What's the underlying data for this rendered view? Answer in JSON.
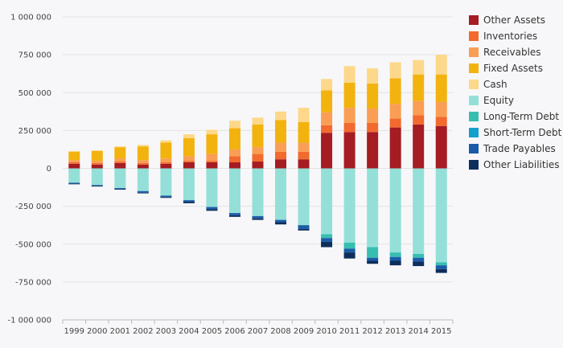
{
  "chart_data": {
    "type": "bar",
    "stacked": true,
    "categories": [
      "1999",
      "2000",
      "2001",
      "2002",
      "2003",
      "2004",
      "2005",
      "2006",
      "2007",
      "2008",
      "2009",
      "2010",
      "2011",
      "2012",
      "2013",
      "2014",
      "2015"
    ],
    "ylim": [
      -1000000,
      1000000
    ],
    "yticks": [
      -1000000,
      -750000,
      -500000,
      -250000,
      0,
      250000,
      500000,
      750000,
      1000000
    ],
    "ytick_labels": [
      "-1 000 000",
      "-750 000",
      "-500 000",
      "-250 000",
      "0",
      "250 000",
      "500 000",
      "750 000",
      "1 000 000"
    ],
    "grid": "horizontal",
    "legend_position": "right",
    "series": [
      {
        "name": "Other Assets",
        "color": "#a51c23",
        "values": [
          30000,
          25000,
          35000,
          25000,
          30000,
          40000,
          40000,
          40000,
          45000,
          60000,
          60000,
          235000,
          240000,
          240000,
          270000,
          290000,
          280000
        ]
      },
      {
        "name": "Inventories",
        "color": "#f26a2e",
        "values": [
          10000,
          10000,
          10000,
          10000,
          10000,
          10000,
          10000,
          40000,
          50000,
          50000,
          50000,
          50000,
          60000,
          60000,
          60000,
          60000,
          60000
        ]
      },
      {
        "name": "Receivables",
        "color": "#f99e54",
        "values": [
          15000,
          15000,
          20000,
          20000,
          25000,
          30000,
          45000,
          45000,
          45000,
          60000,
          60000,
          85000,
          100000,
          95000,
          95000,
          95000,
          100000
        ]
      },
      {
        "name": "Fixed Assets",
        "color": "#f3b30f",
        "values": [
          55000,
          65000,
          75000,
          90000,
          105000,
          120000,
          130000,
          140000,
          150000,
          150000,
          135000,
          145000,
          165000,
          165000,
          170000,
          175000,
          180000
        ]
      },
      {
        "name": "Cash",
        "color": "#fdd88a",
        "values": [
          5000,
          5000,
          5000,
          10000,
          15000,
          25000,
          30000,
          50000,
          45000,
          55000,
          95000,
          75000,
          110000,
          100000,
          105000,
          95000,
          130000
        ]
      },
      {
        "name": "Equity",
        "color": "#94e0d8",
        "values": [
          -95000,
          -110000,
          -130000,
          -150000,
          -180000,
          -210000,
          -255000,
          -295000,
          -315000,
          -340000,
          -375000,
          -435000,
          -490000,
          -520000,
          -555000,
          -565000,
          -620000
        ]
      },
      {
        "name": "Long-Term Debt",
        "color": "#36bfb1",
        "values": [
          0,
          0,
          0,
          0,
          0,
          0,
          0,
          0,
          0,
          0,
          0,
          -25000,
          -40000,
          -70000,
          -30000,
          -25000,
          -20000
        ]
      },
      {
        "name": "Short-Term Debt",
        "color": "#13a0cc",
        "values": [
          0,
          0,
          0,
          0,
          0,
          0,
          0,
          0,
          0,
          0,
          0,
          0,
          0,
          0,
          0,
          0,
          0
        ]
      },
      {
        "name": "Trade Payables",
        "color": "#1b5ca8",
        "values": [
          -5000,
          -5000,
          -5000,
          -10000,
          -10000,
          -10000,
          -15000,
          -15000,
          -15000,
          -15000,
          -25000,
          -25000,
          -25000,
          -20000,
          -25000,
          -25000,
          -25000
        ]
      },
      {
        "name": "Other Liabilities",
        "color": "#0e2e5c",
        "values": [
          -5000,
          -5000,
          -5000,
          -5000,
          -5000,
          -10000,
          -10000,
          -10000,
          -10000,
          -15000,
          -10000,
          -35000,
          -40000,
          -20000,
          -30000,
          -30000,
          -25000
        ]
      }
    ]
  }
}
